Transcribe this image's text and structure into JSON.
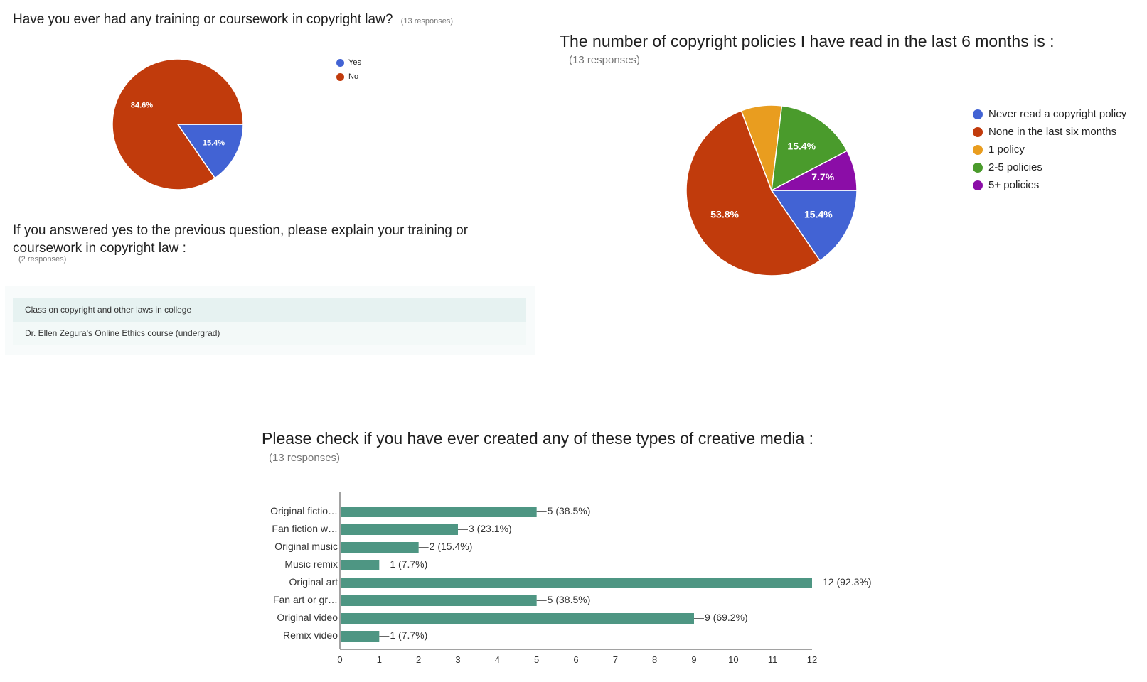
{
  "q1": {
    "title": "Have you ever had any training or coursework in copyright law?",
    "responses": "(13 responses)"
  },
  "q2": {
    "title_line1": "If you answered yes to the previous question, please explain your training or",
    "title_line2": "coursework in copyright law :",
    "responses": "(2 responses)",
    "answers": [
      "Class on copyright and other laws in college",
      "Dr. Ellen Zegura's Online Ethics course (undergrad)"
    ]
  },
  "q3": {
    "title": "The number of copyright policies I have read in the last 6 months is :",
    "responses": "(13 responses)"
  },
  "q4": {
    "title": "Please check if you have ever created any of these types of creative media :",
    "responses": "(13 responses)"
  },
  "colors": {
    "blue": "#4263d4",
    "red": "#c13b0c",
    "orange": "#e99d1f",
    "green": "#4a9b2c",
    "purple": "#8b0da7",
    "bar": "#4e9683"
  },
  "chart_data": [
    {
      "type": "pie",
      "title": "Have you ever had any training or coursework in copyright law?",
      "legend_position": "top-right",
      "categories": [
        "Yes",
        "No"
      ],
      "values": [
        2,
        11
      ],
      "labels": [
        "15.4%",
        "84.6%"
      ],
      "colors": [
        "#4263d4",
        "#c13b0c"
      ]
    },
    {
      "type": "pie",
      "title": "The number of copyright policies I have read in the last 6 months is :",
      "legend_position": "right",
      "categories": [
        "Never read a copyright policy",
        "None in the last six months",
        "1 policy",
        "2-5 policies",
        "5+ policies"
      ],
      "values": [
        2,
        7,
        1,
        2,
        1
      ],
      "labels": [
        "15.4%",
        "53.8%",
        "",
        "15.4%",
        "7.7%"
      ],
      "colors": [
        "#4263d4",
        "#c13b0c",
        "#e99d1f",
        "#4a9b2c",
        "#8b0da7"
      ]
    },
    {
      "type": "bar",
      "orientation": "horizontal",
      "title": "Please check if you have ever created any of these types of creative media :",
      "categories": [
        "Original fictio…",
        "Fan fiction w…",
        "Original music",
        "Music remix",
        "Original art",
        "Fan art or gr…",
        "Original video",
        "Remix video"
      ],
      "values": [
        5,
        3,
        2,
        1,
        12,
        5,
        9,
        1
      ],
      "data_labels": [
        "5 (38.5%)",
        "3 (23.1%)",
        "2 (15.4%)",
        "1 (7.7%)",
        "12 (92.3%)",
        "5 (38.5%)",
        "9 (69.2%)",
        "1 (7.7%)"
      ],
      "xlim": [
        0,
        12
      ],
      "xticks": [
        "0",
        "1",
        "2",
        "3",
        "4",
        "5",
        "6",
        "7",
        "8",
        "9",
        "10",
        "11",
        "12"
      ],
      "color": "#4e9683"
    }
  ]
}
